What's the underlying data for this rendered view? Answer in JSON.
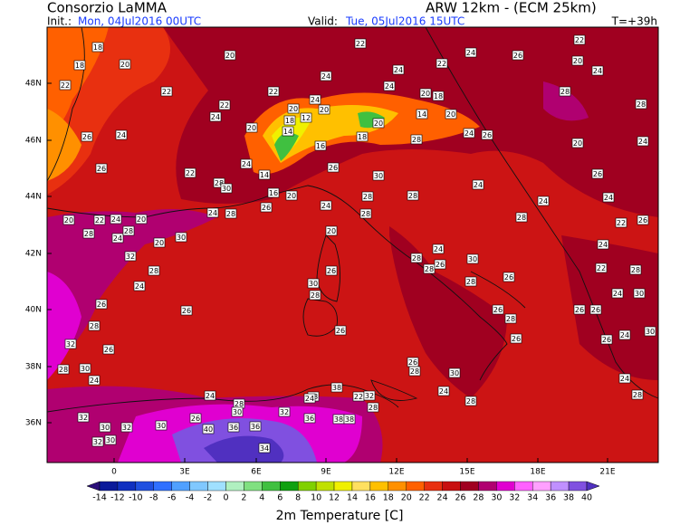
{
  "header": {
    "title": "Consorzio LaMMA",
    "model": "ARW 12km - (ECM 25km)",
    "init_label": "Init.:",
    "init": "Mon, 04Jul2016 00UTC",
    "valid_label": "Valid:",
    "valid": "Tue, 05Jul2016 15UTC",
    "lead": "T=+39h"
  },
  "map": {
    "lat_labels": [
      "48N",
      "46N",
      "44N",
      "42N",
      "40N",
      "38N",
      "36N"
    ],
    "lon_labels": [
      "0",
      "3E",
      "6E",
      "9E",
      "12E",
      "15E",
      "18E",
      "21E"
    ],
    "stations": [
      18,
      18,
      20,
      22,
      20,
      22,
      24,
      24,
      22,
      24,
      26,
      22,
      20,
      24,
      22,
      22,
      22,
      24,
      24,
      20,
      18,
      20,
      14,
      20,
      12,
      18,
      14,
      16,
      24,
      20,
      20,
      20,
      18,
      28,
      24,
      26,
      24,
      26,
      26,
      22,
      28,
      30,
      24,
      14,
      16,
      20,
      24,
      26,
      30,
      28,
      28,
      28,
      20,
      24,
      24,
      28,
      24,
      22,
      26,
      20,
      24,
      26,
      28,
      28,
      20,
      22,
      24,
      20,
      28,
      24,
      20,
      30,
      28,
      24,
      28,
      26,
      32,
      28,
      24,
      26,
      28,
      32,
      26,
      28,
      30,
      24,
      26,
      30,
      26,
      28,
      24,
      28,
      28,
      26,
      30,
      28,
      26,
      28,
      26,
      26,
      28,
      30,
      24,
      28,
      26,
      26,
      24,
      22,
      28,
      30,
      24,
      26,
      26,
      24,
      30,
      26,
      24,
      28,
      26,
      40,
      36,
      36,
      30,
      32,
      28,
      38,
      22,
      38,
      38,
      28,
      36,
      32,
      30,
      32,
      30,
      30,
      32,
      34,
      24,
      28,
      32,
      24
    ]
  },
  "colorbar": {
    "title": "2m Temperature [C]",
    "levels": [
      -14,
      -12,
      -10,
      -8,
      -6,
      -4,
      -2,
      0,
      2,
      4,
      6,
      8,
      10,
      12,
      14,
      16,
      18,
      20,
      22,
      24,
      26,
      28,
      30,
      32,
      34,
      36,
      38,
      40
    ],
    "colors": [
      "#2b0f7a",
      "#0a1a9a",
      "#1030c0",
      "#2050e0",
      "#3070ff",
      "#50a0ff",
      "#80c8ff",
      "#a0e0ff",
      "#b0f0c0",
      "#80e080",
      "#40c040",
      "#10a010",
      "#80d000",
      "#c0e000",
      "#f0f000",
      "#ffe060",
      "#ffc000",
      "#ff9000",
      "#ff6000",
      "#e83010",
      "#c81010",
      "#a00020",
      "#b00070",
      "#e000d0",
      "#ff60ff",
      "#ffa0ff",
      "#c090ff",
      "#8050e0",
      "#5030c0"
    ]
  }
}
